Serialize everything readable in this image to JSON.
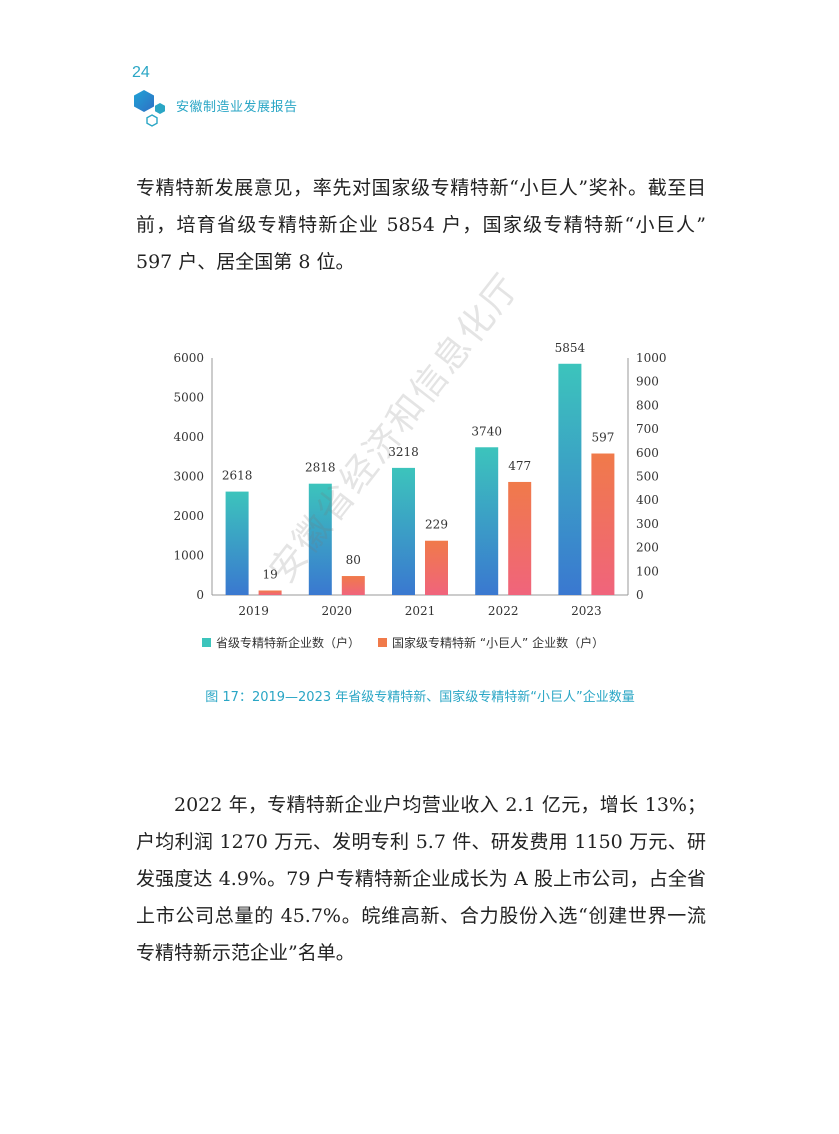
{
  "header": {
    "page_number": "24",
    "title": "安徽制造业发展报告",
    "logo_icon": "hexagon-cluster-icon",
    "accent_color": "#2aa6c5"
  },
  "paragraphs": {
    "first": "专精特新发展意见，率先对国家级专精特新“小巨人”奖补。截至目前，培育省级专精特新企业 5854 户，国家级专精特新“小巨人” 597 户、居全国第 8 位。",
    "second": "2022 年，专精特新企业户均营业收入 2.1 亿元，增长 13%；户均利润 1270 万元、发明专利 5.7 件、研发费用 1150 万元、研发强度达 4.9%。79 户专精特新企业成长为 A 股上市公司，占全省上市公司总量的 45.7%。皖维高新、合力股份入选“创建世界一流专精特新示范企业”名单。"
  },
  "chart_data": {
    "type": "bar",
    "categories": [
      "2019",
      "2020",
      "2021",
      "2022",
      "2023"
    ],
    "series": [
      {
        "name": "省级专精特新企业数（户）",
        "values": [
          2618,
          2818,
          3218,
          3740,
          5854
        ],
        "axis": "left",
        "color_top": "#3cc4bc",
        "color_bottom": "#3a78d0"
      },
      {
        "name": "国家级专精特新 “小巨人” 企业数（户）",
        "values": [
          19,
          80,
          229,
          477,
          597
        ],
        "axis": "right",
        "color_top": "#f07a4a",
        "color_bottom": "#f0647c"
      }
    ],
    "left_axis": {
      "range": [
        0,
        6000
      ],
      "ticks": [
        "0",
        "1000",
        "2000",
        "3000",
        "4000",
        "5000",
        "6000"
      ]
    },
    "right_axis": {
      "range": [
        0,
        1000
      ],
      "ticks": [
        "0",
        "100",
        "200",
        "300",
        "400",
        "500",
        "600",
        "700",
        "800",
        "900",
        "1000"
      ]
    },
    "legend_position": "bottom",
    "grid": false
  },
  "caption": "图 17：2019—2023 年省级专精特新、国家级专精特新“小巨人”企业数量",
  "watermark": "安徽省经济和信息化厅"
}
